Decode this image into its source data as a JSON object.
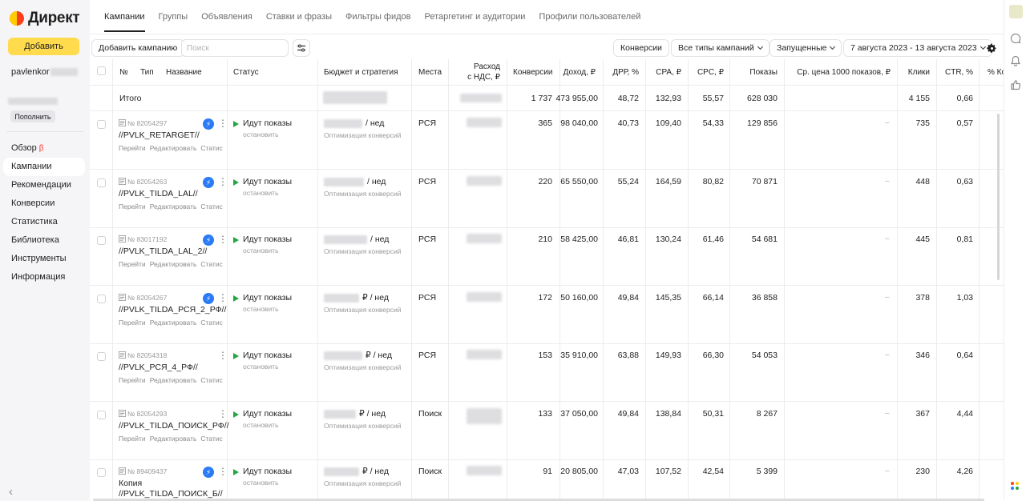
{
  "app": {
    "logo_text": "Директ",
    "colors": {
      "accent": "#ffdb4d",
      "brand_red": "#fc3f1d",
      "status_green": "#23a745",
      "ai_blue": "#2b7bf6"
    }
  },
  "sidebar": {
    "add_button": "Добавить",
    "username": "pavlenkor",
    "topup_button": "Пополнить",
    "beta_mark": "β",
    "items": [
      {
        "label": "Обзор"
      },
      {
        "label": "Кампании"
      },
      {
        "label": "Рекомендации"
      },
      {
        "label": "Конверсии"
      },
      {
        "label": "Статистика"
      },
      {
        "label": "Библиотека"
      },
      {
        "label": "Инструменты"
      },
      {
        "label": "Информация"
      }
    ],
    "collapse_icon": "‹"
  },
  "tabs": [
    {
      "label": "Кампании"
    },
    {
      "label": "Группы"
    },
    {
      "label": "Объявления"
    },
    {
      "label": "Ставки и фразы"
    },
    {
      "label": "Фильтры фидов"
    },
    {
      "label": "Ретаргетинг и аудитории"
    },
    {
      "label": "Профили пользователей"
    }
  ],
  "toolbar": {
    "add_campaign": "Добавить кампанию",
    "search_placeholder": "Поиск",
    "conversions": "Конверсии",
    "campaign_types": "Все типы кампаний",
    "launched": "Запущенные",
    "date_range": "7 августа 2023 - 13 августа 2023"
  },
  "table": {
    "headers": {
      "num": "№",
      "type": "Тип",
      "name": "Название",
      "status": "Статус",
      "budget": "Бюджет и стратегия",
      "places": "Места",
      "spend_1": "Расход",
      "spend_2": "с НДС, ₽",
      "conversions": "Конверсии",
      "income": "Доход, ₽",
      "drr": "ДРР, %",
      "cpa": "CPA, ₽",
      "cpc": "CPC, ₽",
      "impressions": "Показы",
      "cpm": "Ср. цена 1000 показов, ₽",
      "clicks": "Клики",
      "ctr": "CTR, %",
      "conv_pct": "% Ко"
    },
    "totals": {
      "label": "Итого",
      "conversions": "1 737",
      "income": "473 955,00",
      "drr": "48,72",
      "cpa": "132,93",
      "cpc": "55,57",
      "impressions": "628 030",
      "clicks": "4 155",
      "ctr": "0,66"
    },
    "row_links": {
      "go": "Перейти",
      "edit": "Редактировать",
      "stats": "Статис"
    },
    "status_stop": "остановить",
    "strategy_label": "Оптимизация конверсий",
    "cpm_dash": "–",
    "rows": [
      {
        "num": "№ 82054297",
        "name": "//PVLK_RETARGET//",
        "status": "Идут показы",
        "budget_suffix": "/ нед",
        "places": "РСЯ",
        "conversions": "365",
        "income": "98 040,00",
        "drr": "40,73",
        "cpa": "109,40",
        "cpc": "54,33",
        "impressions": "129 856",
        "clicks": "735",
        "ctr": "0,57"
      },
      {
        "num": "№ 82054263",
        "name": "//PVLK_TILDA_LAL//",
        "status": "Идут показы",
        "budget_suffix": "/ нед",
        "places": "РСЯ",
        "conversions": "220",
        "income": "65 550,00",
        "drr": "55,24",
        "cpa": "164,59",
        "cpc": "80,82",
        "impressions": "70 871",
        "clicks": "448",
        "ctr": "0,63"
      },
      {
        "num": "№ 83017192",
        "name": "//PVLK_TILDA_LAL_2//",
        "status": "Идут показы",
        "budget_suffix": "/ нед",
        "places": "РСЯ",
        "conversions": "210",
        "income": "58 425,00",
        "drr": "46,81",
        "cpa": "130,24",
        "cpc": "61,46",
        "impressions": "54 681",
        "clicks": "445",
        "ctr": "0,81"
      },
      {
        "num": "№ 82054267",
        "name": "//PVLK_TILDA_РСЯ_2_РФ//",
        "status": "Идут показы",
        "budget_suffix": "₽ / нед",
        "places": "РСЯ",
        "conversions": "172",
        "income": "50 160,00",
        "drr": "49,84",
        "cpa": "145,35",
        "cpc": "66,14",
        "impressions": "36 858",
        "clicks": "378",
        "ctr": "1,03"
      },
      {
        "num": "№ 82054318",
        "name": "//PVLK_РСЯ_4_РФ//",
        "status": "Идут показы",
        "budget_suffix": "₽ / нед",
        "places": "РСЯ",
        "conversions": "153",
        "income": "35 910,00",
        "drr": "63,88",
        "cpa": "149,93",
        "cpc": "66,30",
        "impressions": "54 053",
        "clicks": "346",
        "ctr": "0,64"
      },
      {
        "num": "№ 82054293",
        "name": "//PVLK_TILDA_ПОИСК_РФ//",
        "status": "Идут показы",
        "budget_suffix": "₽ / нед",
        "places": "Поиск",
        "conversions": "133",
        "income": "37 050,00",
        "drr": "49,84",
        "cpa": "138,84",
        "cpc": "50,31",
        "impressions": "8 267",
        "clicks": "367",
        "ctr": "4,44"
      },
      {
        "num": "№ 89409437",
        "name": "Копия",
        "name2": "//PVLK_TILDA_ПОИСК_Б//",
        "status": "Идут показы",
        "budget_suffix": "₽ / нед",
        "places": "Поиск",
        "conversions": "91",
        "income": "20 805,00",
        "drr": "47,03",
        "cpa": "107,52",
        "cpc": "42,54",
        "impressions": "5 399",
        "clicks": "230",
        "ctr": "4,26"
      }
    ]
  }
}
